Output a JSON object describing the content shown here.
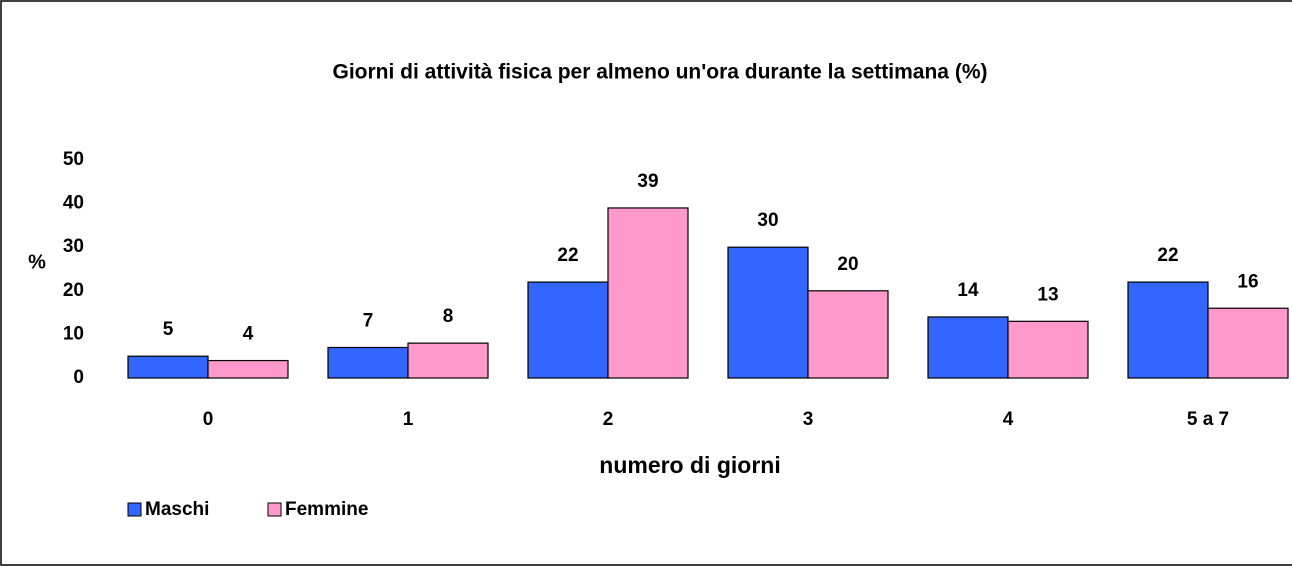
{
  "chart_data": {
    "type": "bar",
    "title": "Giorni di attività fisica per almeno un'ora durante la settimana (%)",
    "x_label": "numero di giorni",
    "y_label": "%",
    "categories": [
      "0",
      "1",
      "2",
      "3",
      "4",
      "5 a 7"
    ],
    "series": [
      {
        "name": "Maschi",
        "color": "#3366ff",
        "values": [
          5,
          7,
          22,
          30,
          14,
          22
        ]
      },
      {
        "name": "Femmine",
        "color": "#ff99cc",
        "values": [
          4,
          8,
          39,
          20,
          13,
          16
        ]
      }
    ],
    "ylim": [
      0,
      50
    ],
    "yticks": [
      0,
      10,
      20,
      30,
      40,
      50
    ],
    "legend": "bottom-left"
  }
}
